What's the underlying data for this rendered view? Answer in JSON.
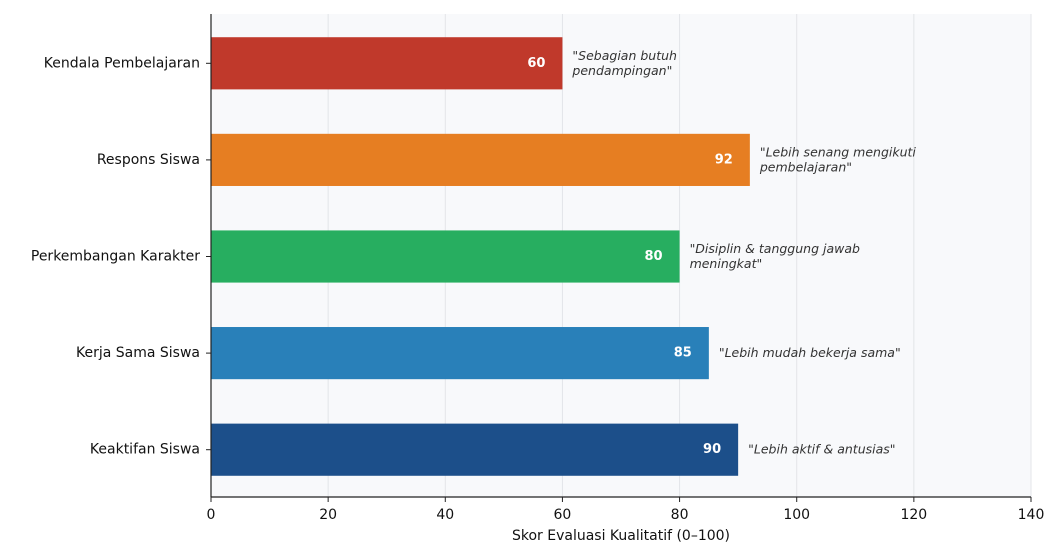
{
  "chart_data": {
    "type": "barh",
    "categories": [
      "Kendala Pembelajaran",
      "Respons Siswa",
      "Perkembangan Karakter",
      "Kerja Sama Siswa",
      "Keaktifan Siswa"
    ],
    "values": [
      60,
      92,
      80,
      85,
      90
    ],
    "colors": [
      "#c0392b",
      "#e67e22",
      "#27ae60",
      "#2980b9",
      "#1c4f8a"
    ],
    "annotations": [
      "\"Sebagian butuh\npendampingan\"",
      "\"Lebih senang mengikuti\npembelajaran\"",
      "\"Disiplin & tanggung jawab\nmeningkat\"",
      "\"Lebih mudah bekerja sama\"",
      "\"Lebih aktif & antusias\""
    ],
    "xlabel": "Skor Evaluasi Kualitatif (0–100)",
    "xlim": [
      0,
      140
    ],
    "xticks": [
      0,
      20,
      40,
      60,
      80,
      100,
      120,
      140
    ],
    "grid": true
  }
}
